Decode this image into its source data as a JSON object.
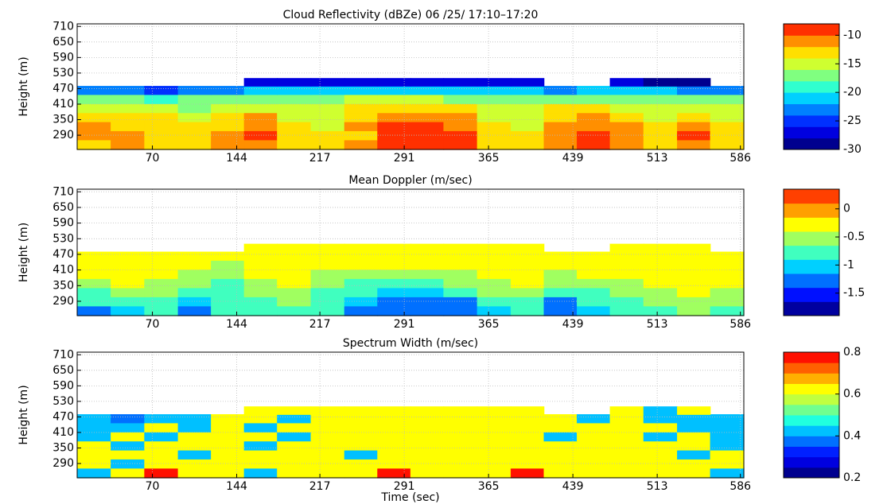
{
  "chart_data": [
    {
      "type": "contour",
      "title": "Cloud Reflectivity (dBZe) 06 /25/ 17:10–17:20",
      "ylabel": "Height (m)",
      "xlim": [
        4,
        589
      ],
      "ylim": [
        235,
        720
      ],
      "xticks": [
        70,
        144,
        217,
        291,
        365,
        439,
        513,
        586
      ],
      "yticks": [
        290,
        350,
        410,
        470,
        530,
        590,
        650,
        710
      ],
      "grid": true,
      "x": [
        19,
        48,
        78,
        107,
        136,
        165,
        194,
        224,
        253,
        282,
        311,
        340,
        370,
        399,
        428,
        457,
        486,
        516,
        545,
        574
      ],
      "y": [
        255,
        290,
        325,
        360,
        395,
        430,
        465,
        495
      ],
      "z": [
        [
          -13,
          -12,
          -13,
          -14,
          -12,
          -11,
          -13,
          -14,
          -12,
          -10,
          -9,
          -10,
          -14,
          -13,
          -12,
          -10,
          -11,
          -14,
          -11,
          -13
        ],
        [
          -12,
          -12,
          -13,
          -14,
          -12,
          -10,
          -13,
          -14,
          -13,
          -10,
          -9,
          -10,
          -13,
          -14,
          -12,
          -10,
          -11,
          -13,
          -10,
          -14
        ],
        [
          -12,
          -13,
          -14,
          -14,
          -13,
          -11,
          -14,
          -15,
          -12,
          -10,
          -10,
          -11,
          -14,
          -15,
          -12,
          -11,
          -12,
          -14,
          -12,
          -14
        ],
        [
          -13,
          -14,
          -14,
          -15,
          -14,
          -12,
          -15,
          -15,
          -13,
          -11,
          -11,
          -12,
          -15,
          -15,
          -13,
          -12,
          -13,
          -15,
          -14,
          -15
        ],
        [
          -16,
          -15,
          -16,
          -17,
          -16,
          -15,
          -16,
          -16,
          -14,
          -13,
          -13,
          -14,
          -16,
          -16,
          -14,
          -14,
          -15,
          -16,
          -15,
          -16
        ],
        [
          -18,
          -17,
          -19,
          -18,
          -18,
          -17,
          -18,
          -17,
          -16,
          -16,
          -16,
          -17,
          -17,
          -18,
          -17,
          -17,
          -18,
          -17,
          -18,
          -18
        ],
        [
          -24,
          -23,
          -25,
          -24,
          -23,
          -22,
          -22,
          -22,
          -21,
          -21,
          -21,
          -21,
          -22,
          -22,
          -23,
          -22,
          -22,
          -22,
          -23,
          -23
        ],
        [
          null,
          null,
          null,
          null,
          null,
          -28,
          -28,
          -28,
          -27,
          -27,
          -27,
          -27,
          -28,
          -28,
          null,
          null,
          -28,
          -29,
          -29,
          null
        ]
      ],
      "clim": [
        -30,
        -8
      ],
      "cticks": [
        -30,
        -25,
        -20,
        -15,
        -10
      ],
      "colors": [
        "#00008f",
        "#0000df",
        "#0030ff",
        "#0080ff",
        "#00d0ff",
        "#30ffcf",
        "#80ff80",
        "#cfff30",
        "#ffdf00",
        "#ff8f00",
        "#ff3000"
      ]
    },
    {
      "type": "contour",
      "title": "Mean Doppler (m/sec)",
      "ylabel": "Height (m)",
      "xlim": [
        4,
        589
      ],
      "ylim": [
        235,
        720
      ],
      "xticks": [
        70,
        144,
        217,
        291,
        365,
        439,
        513,
        586
      ],
      "yticks": [
        290,
        350,
        410,
        470,
        530,
        590,
        650,
        710
      ],
      "grid": true,
      "x": [
        19,
        48,
        78,
        107,
        136,
        165,
        194,
        224,
        253,
        282,
        311,
        340,
        370,
        399,
        428,
        457,
        486,
        516,
        545,
        574
      ],
      "y": [
        255,
        290,
        325,
        360,
        395,
        430,
        465,
        495
      ],
      "z": [
        [
          -1.3,
          -1.1,
          -0.7,
          -1.3,
          -0.9,
          -0.8,
          -0.8,
          -0.9,
          -1.2,
          -1.4,
          -1.3,
          -1.4,
          -1.0,
          -0.8,
          -1.3,
          -1.0,
          -0.9,
          -0.8,
          -0.6,
          -0.7
        ],
        [
          -0.9,
          -0.8,
          -0.7,
          -1.1,
          -0.8,
          -0.7,
          -0.6,
          -0.8,
          -1.0,
          -1.3,
          -1.2,
          -1.3,
          -0.9,
          -0.7,
          -1.2,
          -0.9,
          -0.8,
          -0.6,
          -0.5,
          -0.6
        ],
        [
          -0.7,
          -0.5,
          -0.6,
          -0.8,
          -0.7,
          -0.6,
          -0.5,
          -0.7,
          -0.9,
          -1.1,
          -1.0,
          -0.9,
          -0.6,
          -0.5,
          -0.8,
          -0.7,
          -0.6,
          -0.5,
          -0.4,
          -0.5
        ],
        [
          -0.5,
          -0.3,
          -0.5,
          -0.6,
          -0.8,
          -0.5,
          -0.4,
          -0.6,
          -0.7,
          -0.8,
          -0.7,
          -0.6,
          -0.5,
          -0.4,
          -0.6,
          -0.5,
          -0.5,
          -0.4,
          -0.3,
          -0.4
        ],
        [
          -0.4,
          -0.2,
          -0.4,
          -0.5,
          -0.6,
          -0.4,
          -0.3,
          -0.5,
          -0.6,
          -0.6,
          -0.5,
          -0.5,
          -0.4,
          -0.3,
          -0.5,
          -0.4,
          -0.4,
          -0.3,
          -0.2,
          -0.3
        ],
        [
          -0.3,
          -0.4,
          -0.3,
          -0.4,
          -0.5,
          -0.3,
          -0.2,
          -0.4,
          -0.4,
          -0.3,
          -0.4,
          -0.3,
          -0.2,
          -0.3,
          -0.4,
          -0.3,
          -0.2,
          -0.4,
          -0.3,
          -0.2
        ],
        [
          -0.2,
          -0.3,
          -0.4,
          -0.2,
          -0.3,
          -0.4,
          -0.3,
          -0.2,
          -0.3,
          -0.2,
          -0.3,
          -0.4,
          -0.3,
          -0.2,
          -0.3,
          -0.4,
          -0.2,
          -0.3,
          -0.2,
          -0.3
        ],
        [
          null,
          null,
          null,
          null,
          null,
          -0.3,
          -0.4,
          -0.3,
          -0.3,
          -0.2,
          -0.3,
          -0.3,
          -0.4,
          -0.3,
          null,
          null,
          -0.3,
          -0.4,
          -0.3,
          null
        ]
      ],
      "clim": [
        -1.9,
        0.35
      ],
      "cticks": [
        -1.5,
        -1,
        -0.5,
        0
      ],
      "colors": [
        "#00009f",
        "#0010ff",
        "#0070ff",
        "#00d0ff",
        "#40ffbf",
        "#a0ff60",
        "#ffff00",
        "#ff9f00",
        "#ff4000"
      ]
    },
    {
      "type": "contour",
      "title": "Spectrum Width (m/sec)",
      "ylabel": "Height (m)",
      "xlabel": "Time (sec)",
      "xlim": [
        4,
        589
      ],
      "ylim": [
        235,
        720
      ],
      "xticks": [
        70,
        144,
        217,
        291,
        365,
        439,
        513,
        586
      ],
      "yticks": [
        290,
        350,
        410,
        470,
        530,
        590,
        650,
        710
      ],
      "grid": true,
      "x": [
        19,
        48,
        78,
        107,
        136,
        165,
        194,
        224,
        253,
        282,
        311,
        340,
        370,
        399,
        428,
        457,
        486,
        516,
        545,
        574
      ],
      "y": [
        255,
        290,
        325,
        360,
        395,
        430,
        465,
        495
      ],
      "z": [
        [
          0.42,
          0.62,
          0.78,
          0.62,
          0.62,
          0.42,
          0.62,
          0.62,
          0.62,
          0.78,
          0.62,
          0.62,
          0.62,
          0.78,
          0.62,
          0.62,
          0.62,
          0.62,
          0.62,
          0.42
        ],
        [
          0.62,
          0.42,
          0.62,
          0.62,
          0.62,
          0.62,
          0.62,
          0.62,
          0.62,
          0.62,
          0.62,
          0.62,
          0.62,
          0.62,
          0.62,
          0.62,
          0.62,
          0.62,
          0.62,
          0.62
        ],
        [
          0.62,
          0.62,
          0.62,
          0.42,
          0.62,
          0.62,
          0.62,
          0.62,
          0.42,
          0.62,
          0.62,
          0.62,
          0.62,
          0.62,
          0.62,
          0.62,
          0.62,
          0.62,
          0.42,
          0.62
        ],
        [
          0.62,
          0.42,
          0.62,
          0.62,
          0.62,
          0.42,
          0.62,
          0.62,
          0.62,
          0.62,
          0.62,
          0.62,
          0.62,
          0.62,
          0.62,
          0.62,
          0.62,
          0.62,
          0.62,
          0.42
        ],
        [
          0.42,
          0.62,
          0.42,
          0.62,
          0.62,
          0.62,
          0.42,
          0.62,
          0.62,
          0.62,
          0.62,
          0.62,
          0.62,
          0.62,
          0.42,
          0.62,
          0.62,
          0.42,
          0.62,
          0.42
        ],
        [
          0.42,
          0.42,
          0.62,
          0.42,
          0.62,
          0.42,
          0.62,
          0.62,
          0.62,
          0.62,
          0.62,
          0.62,
          0.62,
          0.62,
          0.62,
          0.62,
          0.62,
          0.62,
          0.42,
          0.42
        ],
        [
          0.42,
          0.36,
          0.42,
          0.42,
          0.62,
          0.62,
          0.42,
          0.62,
          0.62,
          0.62,
          0.62,
          0.62,
          0.62,
          0.62,
          0.62,
          0.42,
          0.62,
          0.42,
          0.42,
          0.42
        ],
        [
          null,
          null,
          null,
          null,
          null,
          0.62,
          0.62,
          0.62,
          0.62,
          0.62,
          0.62,
          0.62,
          0.62,
          0.62,
          null,
          null,
          0.62,
          0.42,
          0.62,
          null
        ]
      ],
      "clim": [
        0.2,
        0.8
      ],
      "cticks": [
        0.2,
        0.4,
        0.6,
        0.8
      ],
      "colors": [
        "#00008f",
        "#0000df",
        "#0020ff",
        "#0070ff",
        "#00c0ff",
        "#20ffdf",
        "#70ff8f",
        "#c0ff40",
        "#ffff00",
        "#ffb000",
        "#ff6000",
        "#ff1000"
      ]
    }
  ]
}
